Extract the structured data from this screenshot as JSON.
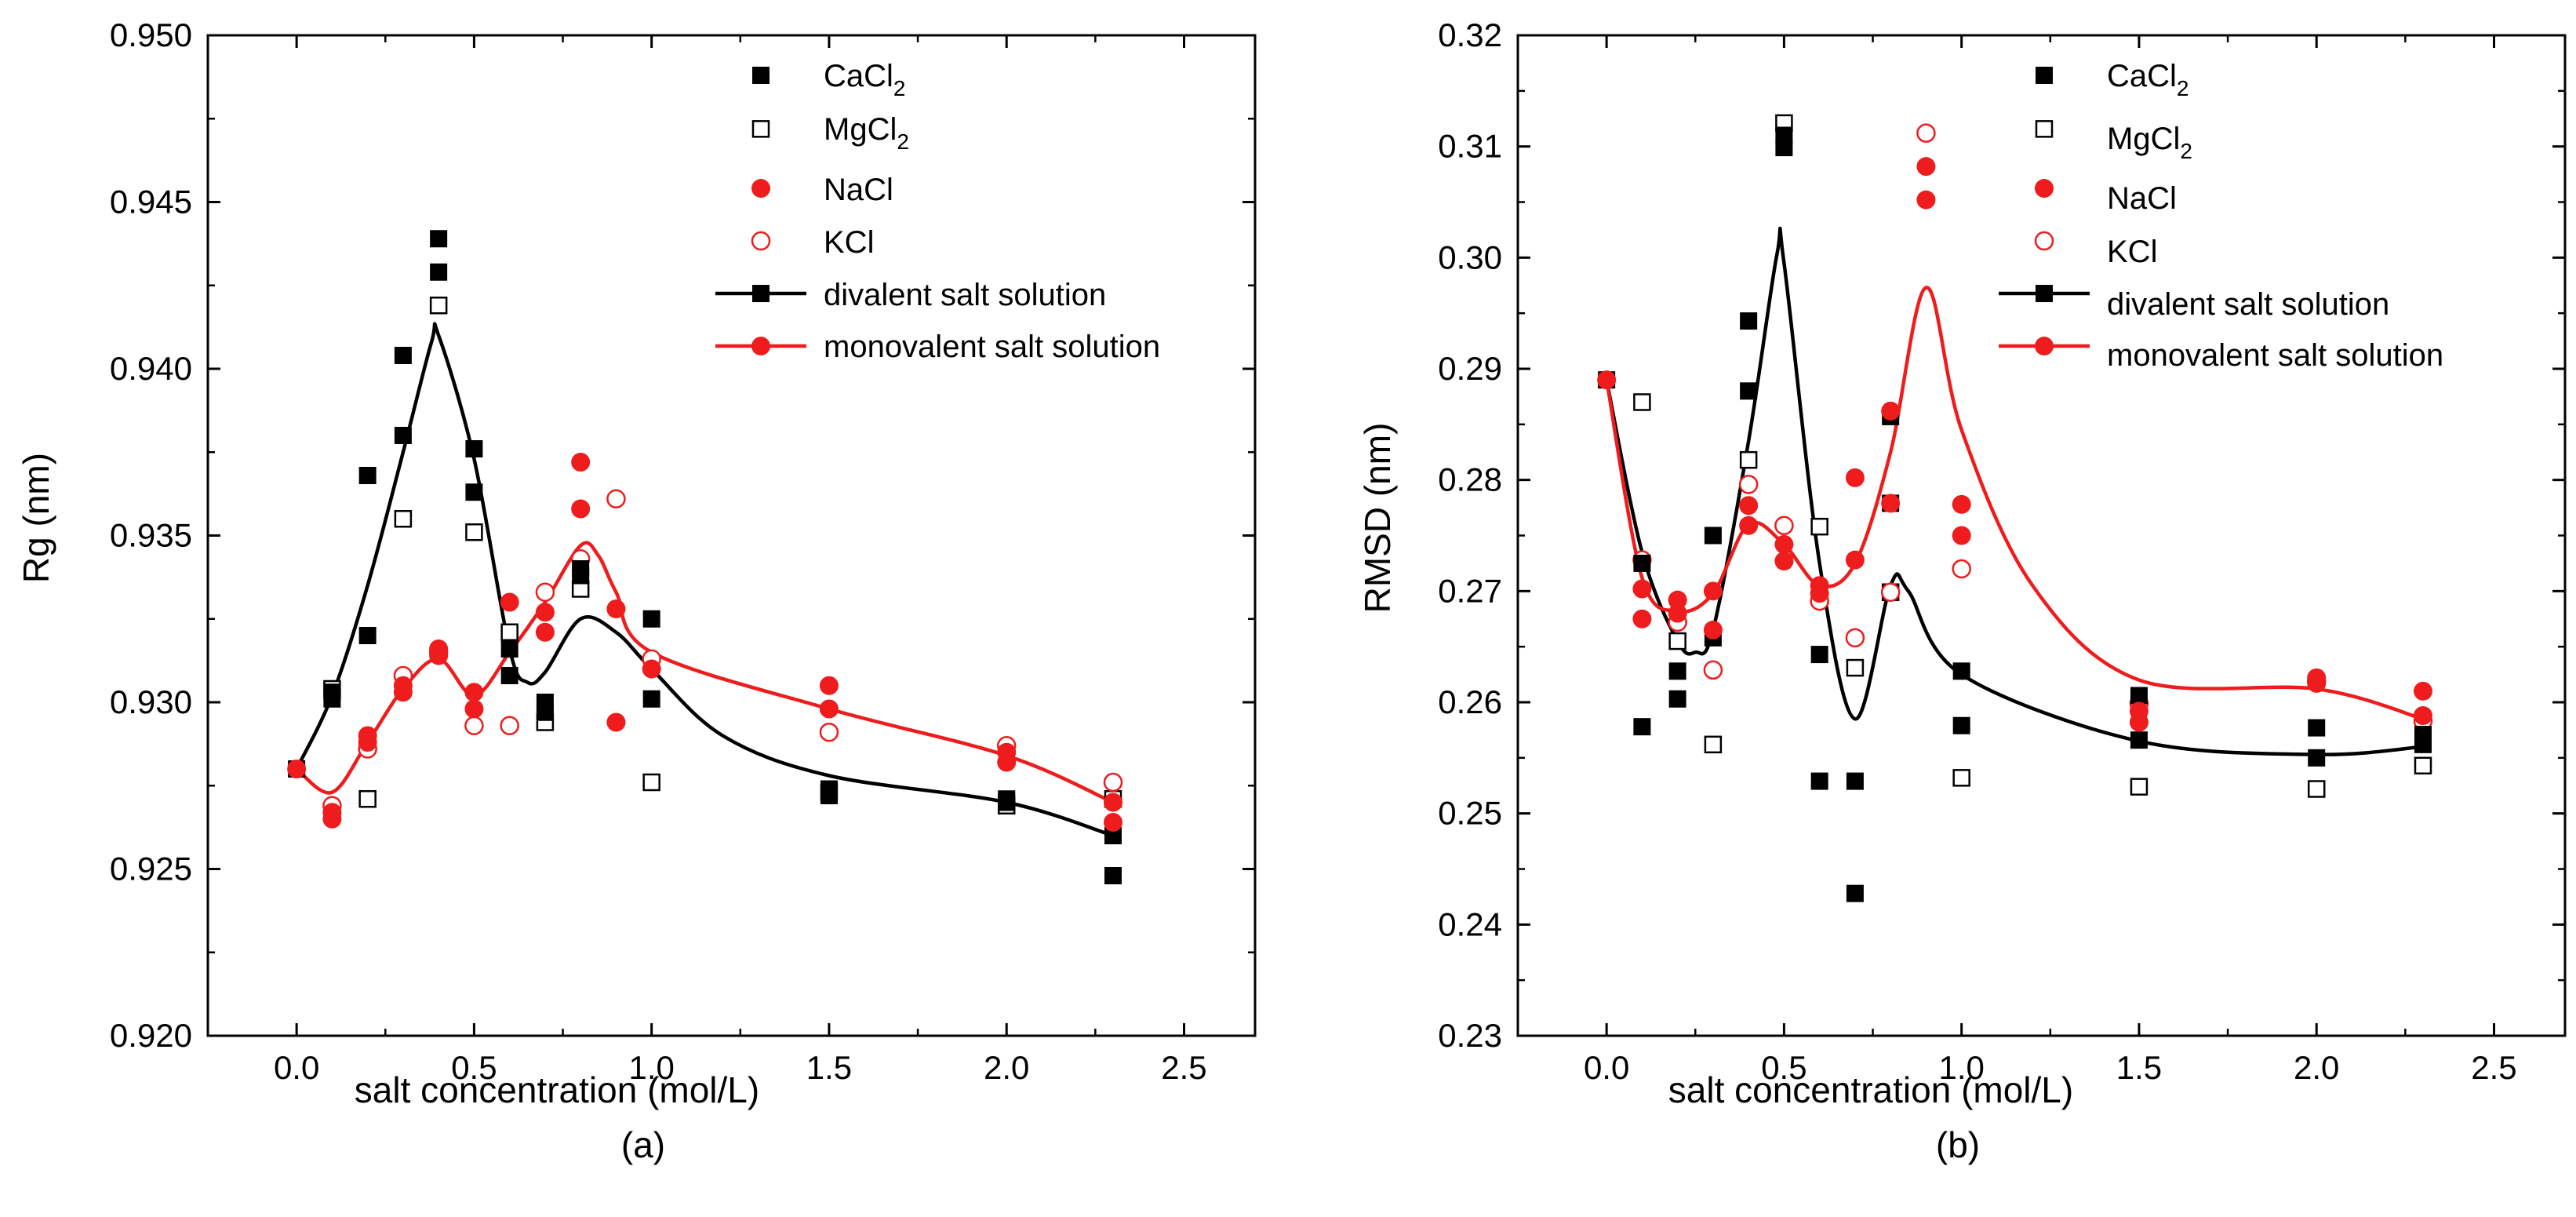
{
  "chart_data": [
    {
      "type": "scatter",
      "panel_label": "(a)",
      "xlabel": "salt concentration (mol/L)",
      "ylabel": "Rg (nm)",
      "xlim": [
        -0.25,
        2.7
      ],
      "ylim": [
        0.92,
        0.95
      ],
      "xticks": [
        "0.0",
        "0.5",
        "1.0",
        "1.5",
        "2.0",
        "2.5"
      ],
      "yticks": [
        "0.920",
        "0.925",
        "0.930",
        "0.935",
        "0.940",
        "0.945",
        "0.950"
      ],
      "legend_position": "top-right",
      "legend": [
        "CaCl",
        "MgCl",
        "NaCl",
        "KCl",
        "divalent salt solution",
        "monovalent salt solution"
      ],
      "series": [
        {
          "name": "CaCl2",
          "marker": "filled-square",
          "color": "#000000",
          "points": [
            [
              0,
              0.928
            ],
            [
              0.1,
              0.9301
            ],
            [
              0.1,
              0.9303
            ],
            [
              0.2,
              0.9368
            ],
            [
              0.2,
              0.932
            ],
            [
              0.3,
              0.9404
            ],
            [
              0.3,
              0.938
            ],
            [
              0.4,
              0.9439
            ],
            [
              0.4,
              0.9429
            ],
            [
              0.5,
              0.9376
            ],
            [
              0.5,
              0.9363
            ],
            [
              0.6,
              0.9316
            ],
            [
              0.6,
              0.9308
            ],
            [
              0.7,
              0.93
            ],
            [
              0.7,
              0.9297
            ],
            [
              0.8,
              0.9338
            ],
            [
              0.8,
              0.934
            ],
            [
              1.0,
              0.9325
            ],
            [
              1.0,
              0.9301
            ],
            [
              1.5,
              0.9272
            ],
            [
              1.5,
              0.9274
            ],
            [
              2.0,
              0.927
            ],
            [
              2.0,
              0.9271
            ],
            [
              2.3,
              0.926
            ],
            [
              2.3,
              0.9248
            ]
          ]
        },
        {
          "name": "MgCl2",
          "marker": "open-square",
          "color": "#000000",
          "points": [
            [
              0.1,
              0.9304
            ],
            [
              0.2,
              0.9271
            ],
            [
              0.3,
              0.9355
            ],
            [
              0.4,
              0.9419
            ],
            [
              0.5,
              0.9351
            ],
            [
              0.6,
              0.9321
            ],
            [
              0.7,
              0.9294
            ],
            [
              0.8,
              0.9334
            ],
            [
              1.0,
              0.9276
            ],
            [
              1.5,
              0.9273
            ],
            [
              2.0,
              0.9269
            ],
            [
              2.3,
              0.9271
            ]
          ]
        },
        {
          "name": "NaCl",
          "marker": "filled-circle",
          "color": "#ee1c1c",
          "points": [
            [
              0,
              0.928
            ],
            [
              0.1,
              0.9265
            ],
            [
              0.1,
              0.9267
            ],
            [
              0.2,
              0.929
            ],
            [
              0.2,
              0.9288
            ],
            [
              0.3,
              0.9305
            ],
            [
              0.3,
              0.9303
            ],
            [
              0.4,
              0.9314
            ],
            [
              0.4,
              0.9316
            ],
            [
              0.5,
              0.9303
            ],
            [
              0.5,
              0.9298
            ],
            [
              0.6,
              0.933
            ],
            [
              0.7,
              0.9327
            ],
            [
              0.7,
              0.9321
            ],
            [
              0.8,
              0.9372
            ],
            [
              0.8,
              0.9358
            ],
            [
              0.9,
              0.9328
            ],
            [
              0.9,
              0.9294
            ],
            [
              1.0,
              0.931
            ],
            [
              1.5,
              0.9305
            ],
            [
              1.5,
              0.9298
            ],
            [
              2.0,
              0.9282
            ],
            [
              2.0,
              0.9285
            ],
            [
              2.3,
              0.927
            ],
            [
              2.3,
              0.9264
            ]
          ]
        },
        {
          "name": "KCl",
          "marker": "open-circle",
          "color": "#ee1c1c",
          "points": [
            [
              0.1,
              0.9269
            ],
            [
              0.2,
              0.9286
            ],
            [
              0.3,
              0.9308
            ],
            [
              0.4,
              0.9315
            ],
            [
              0.5,
              0.9293
            ],
            [
              0.6,
              0.9293
            ],
            [
              0.7,
              0.9333
            ],
            [
              0.8,
              0.9343
            ],
            [
              0.9,
              0.9361
            ],
            [
              1.0,
              0.9313
            ],
            [
              1.5,
              0.9291
            ],
            [
              2.0,
              0.9287
            ],
            [
              2.3,
              0.9276
            ]
          ]
        }
      ],
      "fit_lines": [
        {
          "name": "divalent salt solution",
          "color": "#000000",
          "points": [
            [
              0,
              0.928
            ],
            [
              0.1,
              0.9302
            ],
            [
              0.2,
              0.9335
            ],
            [
              0.3,
              0.9375
            ],
            [
              0.38,
              0.9408
            ],
            [
              0.4,
              0.941
            ],
            [
              0.5,
              0.9373
            ],
            [
              0.6,
              0.9316
            ],
            [
              0.65,
              0.9306
            ],
            [
              0.7,
              0.9309
            ],
            [
              0.8,
              0.9325
            ],
            [
              0.9,
              0.9321
            ],
            [
              1.0,
              0.931
            ],
            [
              1.2,
              0.929
            ],
            [
              1.5,
              0.9278
            ],
            [
              2.0,
              0.927
            ],
            [
              2.3,
              0.926
            ]
          ]
        },
        {
          "name": "monovalent salt solution",
          "color": "#ee1c1c",
          "points": [
            [
              0,
              0.928
            ],
            [
              0.1,
              0.9273
            ],
            [
              0.2,
              0.9288
            ],
            [
              0.3,
              0.9304
            ],
            [
              0.4,
              0.9313
            ],
            [
              0.5,
              0.9302
            ],
            [
              0.6,
              0.9315
            ],
            [
              0.7,
              0.933
            ],
            [
              0.8,
              0.9347
            ],
            [
              0.85,
              0.9344
            ],
            [
              0.9,
              0.9333
            ],
            [
              1.0,
              0.9315
            ],
            [
              1.5,
              0.9298
            ],
            [
              2.0,
              0.9284
            ],
            [
              2.3,
              0.927
            ]
          ]
        }
      ]
    },
    {
      "type": "scatter",
      "panel_label": "(b)",
      "xlabel": "salt concentration (mol/L)",
      "ylabel": "RMSD (nm)",
      "xlim": [
        -0.25,
        2.7
      ],
      "ylim": [
        0.23,
        0.32
      ],
      "xticks": [
        "0.0",
        "0.5",
        "1.0",
        "1.5",
        "2.0",
        "2.5"
      ],
      "yticks": [
        "0.23",
        "0.24",
        "0.25",
        "0.26",
        "0.27",
        "0.28",
        "0.29",
        "0.30",
        "0.31",
        "0.32"
      ],
      "legend_position": "top-right",
      "legend": [
        "CaCl",
        "MgCl",
        "NaCl",
        "KCl",
        "divalent salt solution",
        "monovalent salt solution"
      ],
      "series": [
        {
          "name": "CaCl2",
          "marker": "filled-square",
          "color": "#000000",
          "points": [
            [
              0,
              0.289
            ],
            [
              0.1,
              0.2725
            ],
            [
              0.1,
              0.2578
            ],
            [
              0.2,
              0.2628
            ],
            [
              0.2,
              0.2603
            ],
            [
              0.3,
              0.275
            ],
            [
              0.3,
              0.2658
            ],
            [
              0.4,
              0.2943
            ],
            [
              0.4,
              0.288
            ],
            [
              0.5,
              0.311
            ],
            [
              0.5,
              0.3099
            ],
            [
              0.6,
              0.2643
            ],
            [
              0.6,
              0.2529
            ],
            [
              0.7,
              0.2529
            ],
            [
              0.7,
              0.2428
            ],
            [
              0.8,
              0.2857
            ],
            [
              0.8,
              0.2779
            ],
            [
              1.0,
              0.2628
            ],
            [
              1.0,
              0.2579
            ],
            [
              1.5,
              0.2606
            ],
            [
              1.5,
              0.2566
            ],
            [
              2.0,
              0.2577
            ],
            [
              2.0,
              0.255
            ],
            [
              2.3,
              0.2571
            ],
            [
              2.3,
              0.2562
            ]
          ]
        },
        {
          "name": "MgCl2",
          "marker": "open-square",
          "color": "#000000",
          "points": [
            [
              0.1,
              0.287
            ],
            [
              0.2,
              0.2655
            ],
            [
              0.3,
              0.2562
            ],
            [
              0.4,
              0.2818
            ],
            [
              0.5,
              0.3121
            ],
            [
              0.6,
              0.2758
            ],
            [
              0.7,
              0.2631
            ],
            [
              0.8,
              0.2699
            ],
            [
              1.0,
              0.2532
            ],
            [
              1.5,
              0.2524
            ],
            [
              2.0,
              0.2522
            ],
            [
              2.3,
              0.2543
            ]
          ]
        },
        {
          "name": "NaCl",
          "marker": "filled-circle",
          "color": "#ee1c1c",
          "points": [
            [
              0,
              0.289
            ],
            [
              0.1,
              0.2702
            ],
            [
              0.1,
              0.2675
            ],
            [
              0.2,
              0.2692
            ],
            [
              0.2,
              0.268
            ],
            [
              0.3,
              0.27
            ],
            [
              0.3,
              0.2665
            ],
            [
              0.4,
              0.2777
            ],
            [
              0.4,
              0.2759
            ],
            [
              0.5,
              0.2742
            ],
            [
              0.5,
              0.2727
            ],
            [
              0.6,
              0.2705
            ],
            [
              0.6,
              0.2698
            ],
            [
              0.7,
              0.2802
            ],
            [
              0.7,
              0.2728
            ],
            [
              0.8,
              0.2862
            ],
            [
              0.8,
              0.2779
            ],
            [
              0.9,
              0.3082
            ],
            [
              0.9,
              0.3052
            ],
            [
              1.0,
              0.2778
            ],
            [
              1.0,
              0.275
            ],
            [
              1.5,
              0.2592
            ],
            [
              1.5,
              0.2582
            ],
            [
              2.0,
              0.2622
            ],
            [
              2.0,
              0.2617
            ],
            [
              2.3,
              0.261
            ],
            [
              2.3,
              0.2588
            ]
          ]
        },
        {
          "name": "KCl",
          "marker": "open-circle",
          "color": "#ee1c1c",
          "points": [
            [
              0.1,
              0.2728
            ],
            [
              0.2,
              0.2672
            ],
            [
              0.3,
              0.2629
            ],
            [
              0.4,
              0.2796
            ],
            [
              0.5,
              0.2759
            ],
            [
              0.6,
              0.2691
            ],
            [
              0.7,
              0.2658
            ],
            [
              0.8,
              0.2699
            ],
            [
              0.9,
              0.3112
            ],
            [
              1.0,
              0.272
            ],
            [
              1.5,
              0.2599
            ],
            [
              2.0,
              0.2619
            ],
            [
              2.3,
              0.2583
            ]
          ]
        }
      ],
      "fit_lines": [
        {
          "name": "divalent salt solution",
          "color": "#000000",
          "points": [
            [
              0,
              0.289
            ],
            [
              0.1,
              0.2735
            ],
            [
              0.2,
              0.2655
            ],
            [
              0.25,
              0.2645
            ],
            [
              0.3,
              0.2665
            ],
            [
              0.4,
              0.2835
            ],
            [
              0.48,
              0.3003
            ],
            [
              0.5,
              0.2995
            ],
            [
              0.6,
              0.2725
            ],
            [
              0.7,
              0.2585
            ],
            [
              0.8,
              0.2705
            ],
            [
              0.85,
              0.27
            ],
            [
              1.0,
              0.2625
            ],
            [
              1.5,
              0.2565
            ],
            [
              2.0,
              0.2553
            ],
            [
              2.3,
              0.256
            ]
          ]
        },
        {
          "name": "monovalent salt solution",
          "color": "#ee1c1c",
          "points": [
            [
              0,
              0.289
            ],
            [
              0.1,
              0.2712
            ],
            [
              0.2,
              0.2682
            ],
            [
              0.3,
              0.2698
            ],
            [
              0.4,
              0.276
            ],
            [
              0.5,
              0.2742
            ],
            [
              0.6,
              0.2705
            ],
            [
              0.7,
              0.2725
            ],
            [
              0.8,
              0.2825
            ],
            [
              0.9,
              0.2973
            ],
            [
              1.0,
              0.2845
            ],
            [
              1.2,
              0.2705
            ],
            [
              1.5,
              0.262
            ],
            [
              2.0,
              0.2612
            ],
            [
              2.3,
              0.2585
            ]
          ]
        }
      ]
    }
  ]
}
